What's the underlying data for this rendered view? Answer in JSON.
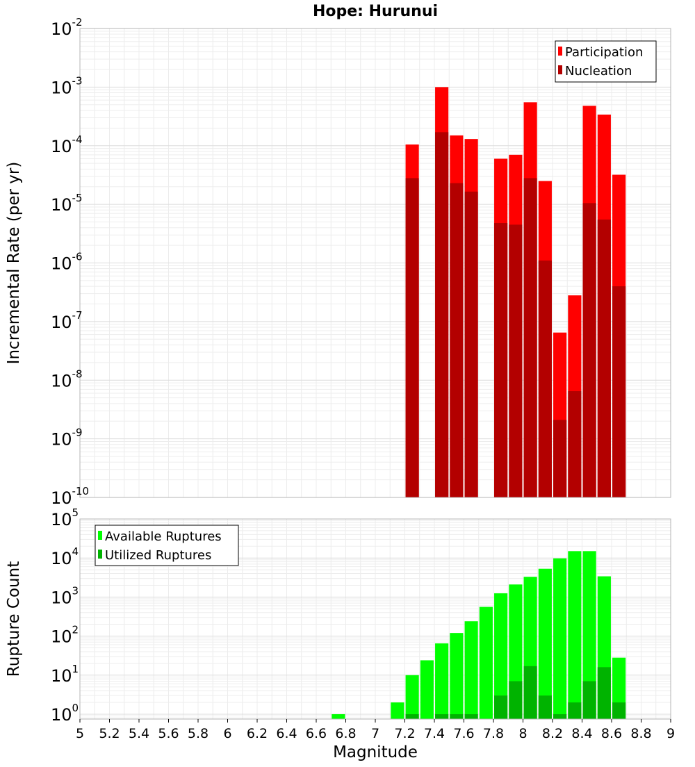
{
  "chart_data": [
    {
      "type": "bar",
      "title": "Hope: Hurunui",
      "xlabel": "",
      "ylabel": "Incremental Rate (per yr)",
      "yscale": "log",
      "xlim": [
        5,
        9
      ],
      "ylim": [
        1e-10,
        0.01
      ],
      "grid": true,
      "legend_position": "top-right",
      "legend_box": true,
      "bar_width": 0.09,
      "ytick_exponents": [
        -10,
        -9,
        -8,
        -7,
        -6,
        -5,
        -4,
        -3,
        -2
      ],
      "x": [
        7.25,
        7.45,
        7.55,
        7.65,
        7.85,
        7.95,
        8.05,
        8.15,
        8.25,
        8.35,
        8.45,
        8.55,
        8.65
      ],
      "series": [
        {
          "name": "Participation",
          "color": "#ff0000",
          "values": [
            0.000105,
            0.001,
            0.00015,
            0.00013,
            6e-05,
            7e-05,
            0.00055,
            2.5e-05,
            6.5e-08,
            2.8e-07,
            0.00048,
            0.00034,
            3.2e-05
          ]
        },
        {
          "name": "Nucleation",
          "color": "#b30000",
          "values": [
            2.8e-05,
            0.00017,
            2.3e-05,
            1.65e-05,
            4.8e-06,
            4.5e-06,
            2.8e-05,
            1.1e-06,
            2.1e-09,
            6.5e-09,
            1.05e-05,
            5.5e-06,
            4e-07
          ]
        }
      ]
    },
    {
      "type": "bar",
      "xlabel": "Magnitude",
      "ylabel": "Rupture Count",
      "yscale": "log",
      "xlim": [
        5,
        9
      ],
      "ylim": [
        0.75,
        100000.0
      ],
      "grid": true,
      "legend_position": "top-left",
      "legend_box": true,
      "bar_width": 0.09,
      "ytick_exponents": [
        0,
        1,
        2,
        3,
        4,
        5
      ],
      "xticks": [
        "5",
        "5.2",
        "5.4",
        "5.6",
        "5.8",
        "6",
        "6.2",
        "6.4",
        "6.6",
        "6.8",
        "7",
        "7.2",
        "7.4",
        "7.6",
        "7.8",
        "8",
        "8.2",
        "8.4",
        "8.6",
        "8.8",
        "9"
      ],
      "x": [
        6.75,
        7.15,
        7.25,
        7.35,
        7.45,
        7.55,
        7.65,
        7.75,
        7.85,
        7.95,
        8.05,
        8.15,
        8.25,
        8.35,
        8.45,
        8.55,
        8.65
      ],
      "series": [
        {
          "name": "Available Ruptures",
          "color": "#00ff00",
          "values": [
            1,
            2,
            10,
            24,
            65,
            120,
            240,
            560,
            1250,
            2100,
            3300,
            5300,
            9800,
            15000,
            15000,
            3400,
            28
          ]
        },
        {
          "name": "Utilized Ruptures",
          "color": "#00b300",
          "values": [
            null,
            null,
            1,
            null,
            1,
            1,
            1,
            null,
            3,
            7,
            17,
            3,
            1,
            2,
            7,
            16,
            2
          ]
        }
      ]
    }
  ]
}
